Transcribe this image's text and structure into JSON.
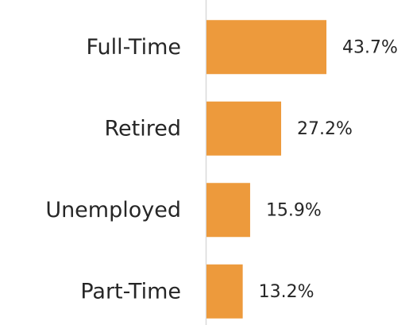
{
  "chart_data": {
    "type": "barh",
    "categories": [
      "Full-Time",
      "Retired",
      "Unemployed",
      "Part-Time"
    ],
    "values": [
      43.7,
      27.2,
      15.9,
      13.2
    ],
    "value_labels": [
      "43.7%",
      "27.2%",
      "15.9%",
      "13.2%"
    ],
    "color": "#ed9a3c",
    "xlim": [
      0,
      50
    ]
  }
}
